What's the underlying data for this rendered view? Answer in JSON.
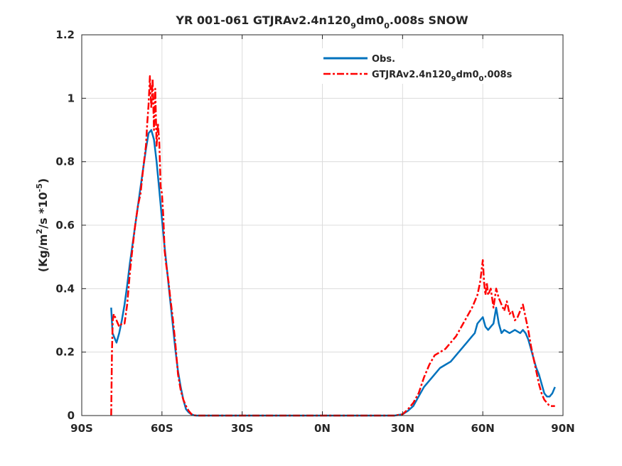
{
  "chart_data": {
    "type": "line",
    "title": {
      "main": "YR 001-061 GTJRAv2.4n120",
      "sub1": "9",
      "mid": "dm0",
      "sub2": "0",
      "end": ".008s SNOW"
    },
    "xlabel": "",
    "ylabel": {
      "part1": "(Kg/m",
      "sup1": "2",
      "part2": "/s *10",
      "sup2": "-5",
      "part3": ")"
    },
    "xlim": [
      -90,
      90
    ],
    "ylim": [
      0,
      1.2
    ],
    "xticks": [
      -90,
      -60,
      -30,
      0,
      30,
      60,
      90
    ],
    "xtick_labels": [
      "90S",
      "60S",
      "30S",
      "0N",
      "30N",
      "60N",
      "90N"
    ],
    "yticks": [
      0,
      0.2,
      0.4,
      0.6,
      0.8,
      1.0,
      1.2
    ],
    "ytick_labels": [
      "0",
      "0.2",
      "0.4",
      "0.6",
      "0.8",
      "1",
      "1.2"
    ],
    "grid": true,
    "legend_position": "top-right",
    "legend": [
      {
        "main": "Obs.",
        "sub1": "",
        "mid": "",
        "sub2": "",
        "end": ""
      },
      {
        "main": "GTJRAv2.4n120",
        "sub1": "9",
        "mid": "dm0",
        "sub2": "0",
        "end": ".008s"
      }
    ],
    "series": [
      {
        "name": "Obs.",
        "color": "#0072bd",
        "dash": "solid",
        "x": [
          -79,
          -78.5,
          -78,
          -77,
          -76,
          -75,
          -74,
          -73,
          -72,
          -71,
          -70,
          -69,
          -68,
          -67,
          -66,
          -65,
          -64,
          -63,
          -62,
          -61,
          -60,
          -59,
          -58,
          -57,
          -56,
          -55,
          -54,
          -53,
          -52,
          -51,
          -50,
          -49,
          -48,
          -47,
          -46,
          -40,
          -30,
          -20,
          -10,
          0,
          10,
          20,
          27,
          30,
          32,
          34,
          36,
          38,
          40,
          42,
          44,
          46,
          48,
          50,
          52,
          54,
          56,
          57,
          58,
          59,
          60,
          61,
          62,
          63,
          64,
          65,
          66,
          67,
          68,
          70,
          72,
          74,
          75,
          76,
          77,
          78,
          79,
          80,
          81,
          82,
          83,
          84,
          85,
          86,
          87
        ],
        "y": [
          0.34,
          0.26,
          0.25,
          0.23,
          0.26,
          0.3,
          0.35,
          0.41,
          0.48,
          0.54,
          0.6,
          0.66,
          0.72,
          0.78,
          0.84,
          0.89,
          0.9,
          0.87,
          0.8,
          0.71,
          0.62,
          0.53,
          0.45,
          0.37,
          0.29,
          0.21,
          0.14,
          0.09,
          0.05,
          0.02,
          0.01,
          0.004,
          0.001,
          0.0,
          0.0,
          0.0,
          0.0,
          0.0,
          0.0,
          0.0,
          0.0,
          0.0,
          0.0,
          0.004,
          0.015,
          0.03,
          0.06,
          0.09,
          0.11,
          0.13,
          0.15,
          0.16,
          0.17,
          0.19,
          0.21,
          0.23,
          0.25,
          0.26,
          0.29,
          0.3,
          0.31,
          0.28,
          0.27,
          0.28,
          0.29,
          0.34,
          0.29,
          0.26,
          0.27,
          0.26,
          0.27,
          0.26,
          0.27,
          0.26,
          0.24,
          0.21,
          0.18,
          0.15,
          0.13,
          0.1,
          0.07,
          0.06,
          0.06,
          0.07,
          0.09
        ]
      },
      {
        "name": "GTJRAv2.4n1209dm00.008s",
        "color": "#ff0000",
        "dash": "10,3,3,3",
        "x": [
          -79,
          -78.7,
          -78.4,
          -78,
          -77.5,
          -77,
          -76,
          -75,
          -74,
          -73,
          -72,
          -71,
          -70,
          -69,
          -68,
          -67,
          -66,
          -65.5,
          -65,
          -64.5,
          -64,
          -63.5,
          -63,
          -62.5,
          -62,
          -61.5,
          -61,
          -60.5,
          -60,
          -59.5,
          -59,
          -58.5,
          -58,
          -57.5,
          -57,
          -56,
          -55,
          -54,
          -53,
          -52,
          -51,
          -50,
          -49,
          -48,
          -47,
          -46,
          -40,
          -30,
          -20,
          -10,
          0,
          10,
          20,
          27,
          30,
          32,
          34,
          36,
          38,
          40,
          42,
          44,
          46,
          48,
          50,
          52,
          54,
          56,
          58,
          59,
          60,
          60.5,
          61,
          61.5,
          62,
          63,
          64,
          65,
          66,
          67,
          68,
          69,
          70,
          71,
          72,
          73,
          74,
          75,
          76,
          77,
          78,
          79,
          80,
          81,
          82,
          83,
          84,
          85,
          86,
          87
        ],
        "y": [
          0.0,
          0.2,
          0.3,
          0.32,
          0.31,
          0.3,
          0.28,
          0.29,
          0.29,
          0.35,
          0.45,
          0.53,
          0.6,
          0.66,
          0.7,
          0.78,
          0.85,
          0.92,
          0.98,
          1.07,
          0.97,
          1.06,
          0.9,
          1.03,
          0.85,
          0.92,
          0.86,
          0.72,
          0.7,
          0.63,
          0.52,
          0.48,
          0.45,
          0.42,
          0.38,
          0.31,
          0.23,
          0.13,
          0.08,
          0.05,
          0.03,
          0.015,
          0.005,
          0.001,
          0.0,
          0.0,
          0.0,
          0.0,
          0.0,
          0.0,
          0.0,
          0.0,
          0.0,
          0.0,
          0.004,
          0.02,
          0.04,
          0.07,
          0.12,
          0.16,
          0.19,
          0.2,
          0.21,
          0.23,
          0.25,
          0.28,
          0.31,
          0.34,
          0.38,
          0.42,
          0.49,
          0.42,
          0.38,
          0.42,
          0.38,
          0.4,
          0.34,
          0.4,
          0.37,
          0.35,
          0.33,
          0.36,
          0.32,
          0.33,
          0.3,
          0.31,
          0.33,
          0.35,
          0.31,
          0.27,
          0.22,
          0.18,
          0.14,
          0.1,
          0.07,
          0.05,
          0.04,
          0.03,
          0.03,
          0.03
        ]
      }
    ]
  }
}
